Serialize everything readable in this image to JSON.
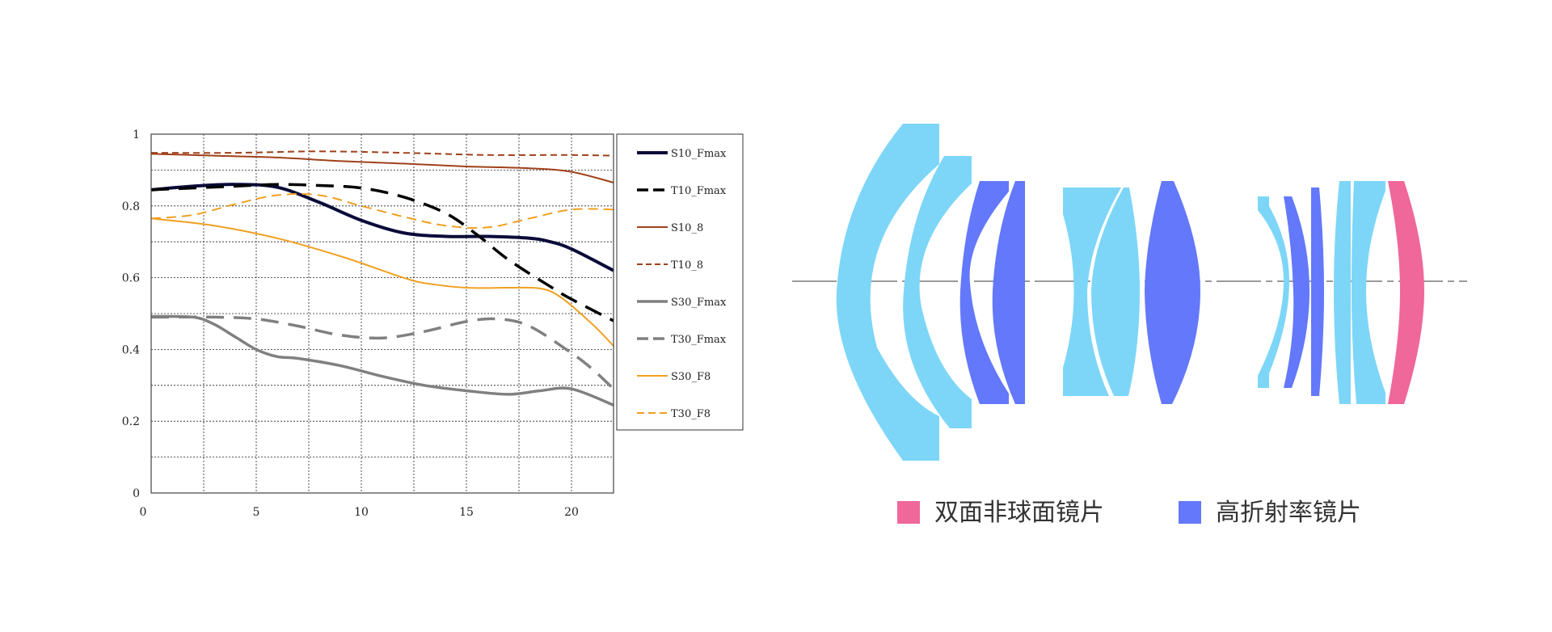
{
  "chart_data": {
    "type": "line",
    "xlim": [
      0,
      22
    ],
    "ylim": [
      0,
      1
    ],
    "x_ticks": [
      "0",
      "5",
      "10",
      "15",
      "20"
    ],
    "y_ticks": [
      "0",
      "0.2",
      "0.4",
      "0.6",
      "0.8",
      "1"
    ],
    "grid": true,
    "legend_position": "right",
    "series": [
      {
        "name": "S10_Fmax",
        "color": "#0b0b3a",
        "dash": "solid",
        "width": 4,
        "points": [
          [
            0,
            0.845
          ],
          [
            2,
            0.855
          ],
          [
            4,
            0.86
          ],
          [
            6,
            0.852
          ],
          [
            8,
            0.81
          ],
          [
            10,
            0.76
          ],
          [
            12,
            0.725
          ],
          [
            14,
            0.715
          ],
          [
            16,
            0.715
          ],
          [
            18,
            0.71
          ],
          [
            19,
            0.7
          ],
          [
            20,
            0.68
          ],
          [
            22,
            0.62
          ]
        ]
      },
      {
        "name": "T10_Fmax",
        "color": "#000000",
        "dash": "long",
        "width": 3.5,
        "points": [
          [
            0,
            0.845
          ],
          [
            2,
            0.85
          ],
          [
            4,
            0.855
          ],
          [
            6,
            0.86
          ],
          [
            8,
            0.857
          ],
          [
            10,
            0.85
          ],
          [
            12,
            0.825
          ],
          [
            14,
            0.78
          ],
          [
            15.5,
            0.72
          ],
          [
            17,
            0.65
          ],
          [
            19,
            0.575
          ],
          [
            20,
            0.54
          ],
          [
            22,
            0.48
          ]
        ]
      },
      {
        "name": "S10_8",
        "color": "#a0401a",
        "dash": "solid",
        "width": 2,
        "points": [
          [
            0,
            0.945
          ],
          [
            3,
            0.94
          ],
          [
            6,
            0.935
          ],
          [
            9,
            0.925
          ],
          [
            12,
            0.918
          ],
          [
            15,
            0.91
          ],
          [
            18,
            0.905
          ],
          [
            20,
            0.895
          ],
          [
            22,
            0.865
          ]
        ]
      },
      {
        "name": "T10_8",
        "color": "#a0401a",
        "dash": "short",
        "width": 2,
        "points": [
          [
            0,
            0.948
          ],
          [
            4,
            0.948
          ],
          [
            8,
            0.952
          ],
          [
            12,
            0.948
          ],
          [
            16,
            0.942
          ],
          [
            20,
            0.942
          ],
          [
            22,
            0.94
          ]
        ]
      },
      {
        "name": "S30_Fmax",
        "color": "#808080",
        "dash": "solid",
        "width": 3.5,
        "points": [
          [
            0,
            0.492
          ],
          [
            2,
            0.49
          ],
          [
            3,
            0.47
          ],
          [
            4,
            0.435
          ],
          [
            5,
            0.4
          ],
          [
            6,
            0.38
          ],
          [
            7,
            0.375
          ],
          [
            9,
            0.355
          ],
          [
            11,
            0.325
          ],
          [
            13,
            0.3
          ],
          [
            15,
            0.285
          ],
          [
            17,
            0.275
          ],
          [
            18.5,
            0.285
          ],
          [
            20,
            0.29
          ],
          [
            22,
            0.245
          ]
        ]
      },
      {
        "name": "T30_Fmax",
        "color": "#808080",
        "dash": "long",
        "width": 3.5,
        "points": [
          [
            0,
            0.49
          ],
          [
            3,
            0.49
          ],
          [
            5,
            0.485
          ],
          [
            7,
            0.465
          ],
          [
            9,
            0.44
          ],
          [
            11,
            0.432
          ],
          [
            13,
            0.45
          ],
          [
            15,
            0.478
          ],
          [
            16.5,
            0.485
          ],
          [
            18,
            0.465
          ],
          [
            20,
            0.39
          ],
          [
            21,
            0.345
          ],
          [
            22,
            0.29
          ]
        ]
      },
      {
        "name": "S30_F8",
        "color": "#f0a020",
        "dash": "solid",
        "width": 2,
        "points": [
          [
            0,
            0.765
          ],
          [
            3,
            0.745
          ],
          [
            6,
            0.71
          ],
          [
            9,
            0.66
          ],
          [
            11,
            0.62
          ],
          [
            12,
            0.6
          ],
          [
            13,
            0.585
          ],
          [
            15,
            0.572
          ],
          [
            17,
            0.572
          ],
          [
            18.5,
            0.57
          ],
          [
            19.5,
            0.545
          ],
          [
            21,
            0.47
          ],
          [
            22,
            0.41
          ]
        ]
      },
      {
        "name": "T30_F8",
        "color": "#f0a020",
        "dash": "medium",
        "width": 2,
        "points": [
          [
            0,
            0.765
          ],
          [
            2,
            0.775
          ],
          [
            4,
            0.805
          ],
          [
            6,
            0.83
          ],
          [
            8,
            0.83
          ],
          [
            10,
            0.8
          ],
          [
            12,
            0.77
          ],
          [
            14,
            0.745
          ],
          [
            16,
            0.74
          ],
          [
            18,
            0.765
          ],
          [
            20,
            0.79
          ],
          [
            22,
            0.79
          ]
        ]
      }
    ]
  },
  "lens_diagram": {
    "colors": {
      "light": "#7dd6f7",
      "dark": "#6378fa",
      "aspheric": "#f0679a",
      "axis": "#9a9a9a"
    },
    "legend": [
      {
        "label": "双面非球面镜片",
        "color": "#f0679a"
      },
      {
        "label": "高折射率镜片",
        "color": "#6378fa"
      }
    ]
  }
}
